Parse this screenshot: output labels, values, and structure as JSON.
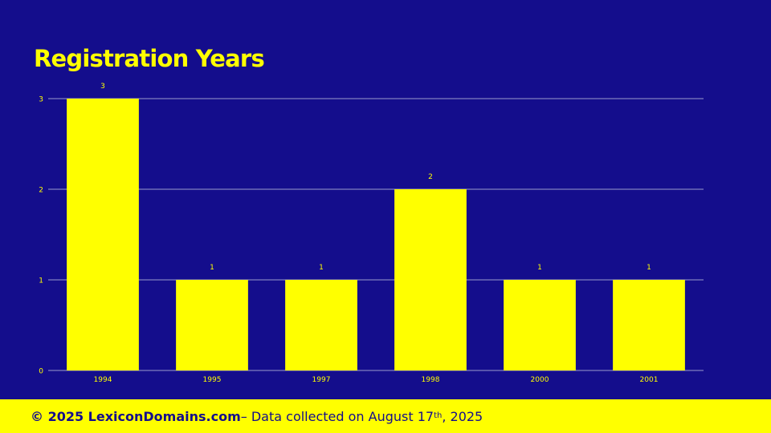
{
  "title": "Registration Years",
  "colors": {
    "background": "#140d8c",
    "bar": "#ffff00",
    "gridline": "#7f7fbf",
    "text": "#ffff00",
    "footer_bg": "#ffff00",
    "footer_text": "#140d8c"
  },
  "footer": {
    "copyright": "© 2025 LexiconDomains.com",
    "text_before_sup": " – Data collected on August 17",
    "sup": "th",
    "text_after_sup": ", 2025"
  },
  "chart_data": {
    "type": "bar",
    "title": "Registration Years",
    "categories": [
      "1994",
      "1995",
      "1997",
      "1998",
      "2000",
      "2001"
    ],
    "values": [
      3,
      1,
      1,
      2,
      1,
      1
    ],
    "data_labels": [
      "3",
      "1",
      "1",
      "2",
      "1",
      "1"
    ],
    "yticks": [
      "0",
      "1",
      "2",
      "3"
    ],
    "ylim": [
      0,
      3
    ],
    "grid": true,
    "legend": "none",
    "xlabel": "",
    "ylabel": ""
  }
}
